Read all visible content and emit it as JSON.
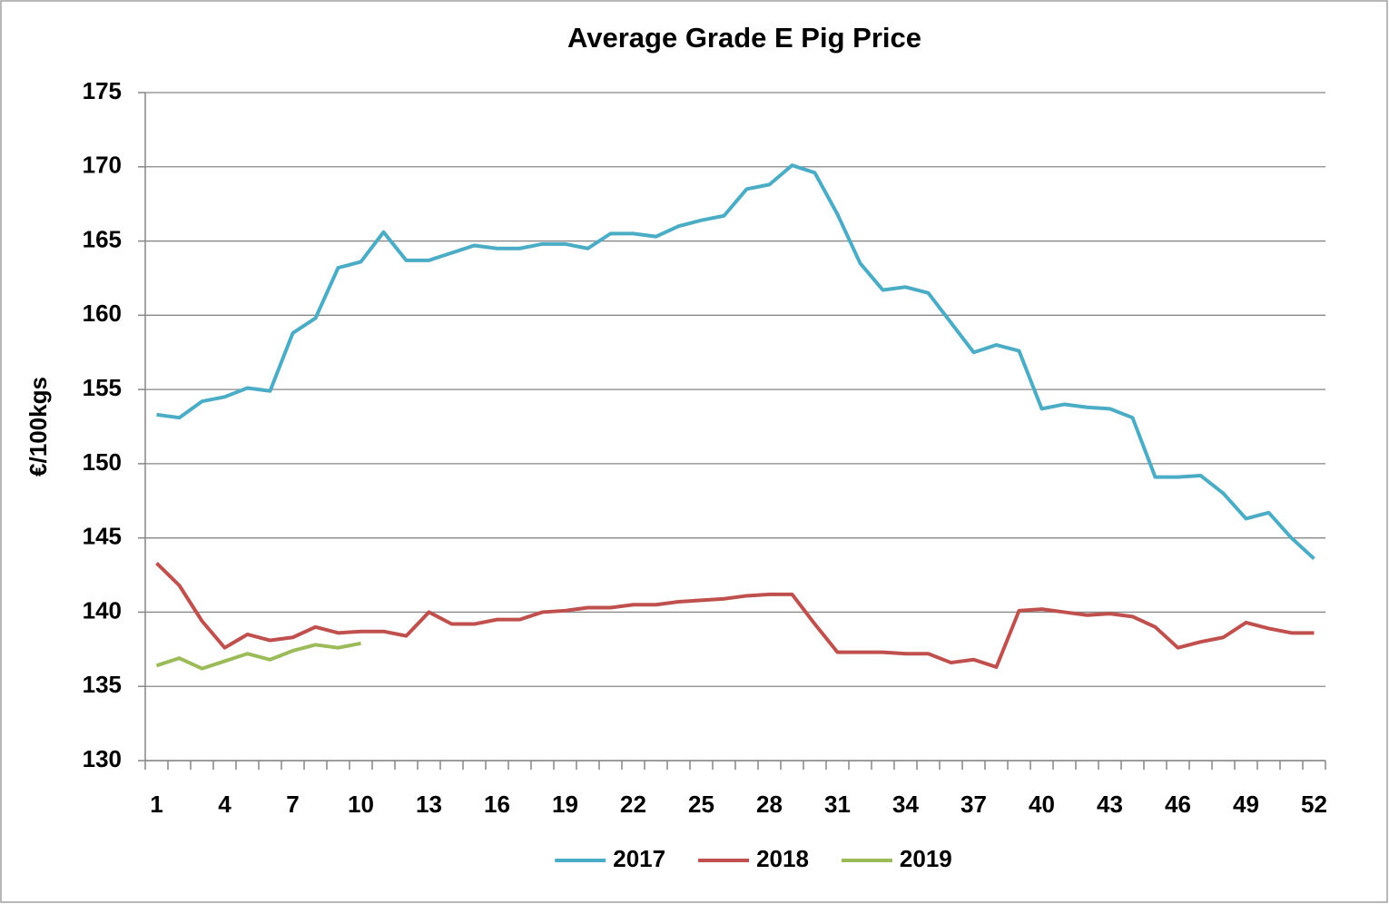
{
  "chart_data": {
    "type": "line",
    "title": "Average Grade E Pig Price",
    "y_label": "€/100kgs",
    "categories": [
      1,
      null,
      null,
      4,
      null,
      null,
      7,
      null,
      null,
      10,
      null,
      null,
      13,
      null,
      null,
      16,
      null,
      null,
      19,
      null,
      null,
      22,
      null,
      null,
      25,
      null,
      null,
      28,
      null,
      null,
      31,
      null,
      null,
      34,
      null,
      null,
      37,
      null,
      null,
      40,
      null,
      null,
      43,
      null,
      null,
      46,
      null,
      null,
      49,
      null,
      null,
      52
    ],
    "series": [
      {
        "name": "2017",
        "color": "#4bacc6",
        "values": [
          153.3,
          153.1,
          154.2,
          154.5,
          155.1,
          154.9,
          158.8,
          159.8,
          163.2,
          163.6,
          165.6,
          163.7,
          163.7,
          164.2,
          164.7,
          164.5,
          164.5,
          164.8,
          164.8,
          164.5,
          165.5,
          165.5,
          165.3,
          166.0,
          166.4,
          166.7,
          168.5,
          168.8,
          170.1,
          169.6,
          166.8,
          163.5,
          161.7,
          161.9,
          161.5,
          159.5,
          157.5,
          158.0,
          157.6,
          153.7,
          154.0,
          153.8,
          153.7,
          153.1,
          149.1,
          149.1,
          149.2,
          148.0,
          146.3,
          146.7,
          145.0,
          143.6
        ]
      },
      {
        "name": "2018",
        "color": "#c0504d",
        "values": [
          143.3,
          141.8,
          139.4,
          137.6,
          138.5,
          138.1,
          138.3,
          139.0,
          138.6,
          138.7,
          138.7,
          138.4,
          140.0,
          139.2,
          139.2,
          139.5,
          139.5,
          140.0,
          140.1,
          140.3,
          140.3,
          140.5,
          140.5,
          140.7,
          140.8,
          140.9,
          141.1,
          141.2,
          141.2,
          139.2,
          137.3,
          137.3,
          137.3,
          137.2,
          137.2,
          136.6,
          136.8,
          136.3,
          140.1,
          140.2,
          140.0,
          139.8,
          139.9,
          139.7,
          139.0,
          137.6,
          138.0,
          138.3,
          139.3,
          138.9,
          138.6,
          138.6
        ]
      },
      {
        "name": "2019",
        "color": "#9bbb59",
        "values": [
          136.4,
          136.9,
          136.2,
          136.7,
          137.2,
          136.8,
          137.4,
          137.8,
          137.6,
          137.9,
          null,
          null,
          null,
          null,
          null,
          null,
          null,
          null,
          null,
          null,
          null,
          null,
          null,
          null,
          null,
          null,
          null,
          null,
          null,
          null,
          null,
          null,
          null,
          null,
          null,
          null,
          null,
          null,
          null,
          null,
          null,
          null,
          null,
          null,
          null,
          null,
          null,
          null,
          null,
          null,
          null,
          null
        ]
      }
    ],
    "ylim": [
      130,
      175
    ],
    "yticks": [
      130,
      135,
      140,
      145,
      150,
      155,
      160,
      165,
      170,
      175
    ],
    "grid": true,
    "legend": "bottom"
  }
}
